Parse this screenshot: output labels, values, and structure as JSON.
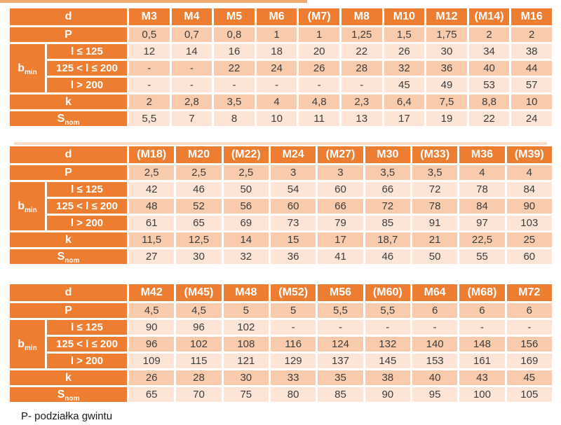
{
  "footnote": "P- podziałka gwintu",
  "colors": {
    "header_bg": "#ED7D31",
    "row_light": "#FCE4D6",
    "row_medium": "#F8CBAD",
    "header_text": "#FFFFFF",
    "cell_text": "#3D3D3D",
    "top_strip": "#F2A96E",
    "divider_strip": "#FBDCC7"
  },
  "row_labels": {
    "d": "d",
    "p": "P",
    "b_base": "b",
    "b_sub": "min",
    "len_1": "l ≤ 125",
    "len_2": "125 < l ≤ 200",
    "len_3": "l > 200",
    "k": "k",
    "s_base": "S",
    "s_sub": "nom"
  },
  "tables": [
    {
      "columns": [
        "M3",
        "M4",
        "M5",
        "M6",
        "(M7)",
        "M8",
        "M10",
        "M12",
        "(M14)",
        "M16"
      ],
      "p": [
        "0,5",
        "0,7",
        "0,8",
        "1",
        "1",
        "1,25",
        "1,5",
        "1,75",
        "2",
        "2"
      ],
      "b1": [
        "12",
        "14",
        "16",
        "18",
        "20",
        "22",
        "26",
        "30",
        "34",
        "38"
      ],
      "b2": [
        "-",
        "-",
        "22",
        "24",
        "26",
        "28",
        "32",
        "36",
        "40",
        "44"
      ],
      "b3": [
        "-",
        "-",
        "-",
        "-",
        "-",
        "-",
        "45",
        "49",
        "53",
        "57"
      ],
      "k": [
        "2",
        "2,8",
        "3,5",
        "4",
        "4,8",
        "2,3",
        "6,4",
        "7,5",
        "8,8",
        "10"
      ],
      "s": [
        "5,5",
        "7",
        "8",
        "10",
        "11",
        "13",
        "17",
        "19",
        "22",
        "24"
      ]
    },
    {
      "columns": [
        "(M18)",
        "M20",
        "(M22)",
        "M24",
        "(M27)",
        "M30",
        "(M33)",
        "M36",
        "(M39)"
      ],
      "p": [
        "2,5",
        "2,5",
        "2,5",
        "3",
        "3",
        "3,5",
        "3,5",
        "4",
        "4"
      ],
      "b1": [
        "42",
        "46",
        "50",
        "54",
        "60",
        "66",
        "72",
        "78",
        "84"
      ],
      "b2": [
        "48",
        "52",
        "56",
        "60",
        "66",
        "72",
        "78",
        "84",
        "90"
      ],
      "b3": [
        "61",
        "65",
        "69",
        "73",
        "79",
        "85",
        "91",
        "97",
        "103"
      ],
      "k": [
        "11,5",
        "12,5",
        "14",
        "15",
        "17",
        "18,7",
        "21",
        "22,5",
        "25"
      ],
      "s": [
        "27",
        "30",
        "32",
        "36",
        "41",
        "46",
        "50",
        "55",
        "60"
      ]
    },
    {
      "columns": [
        "M42",
        "(M45)",
        "M48",
        "(M52)",
        "M56",
        "(M60)",
        "M64",
        "(M68)",
        "M72"
      ],
      "p": [
        "4,5",
        "4,5",
        "5",
        "5",
        "5,5",
        "5,5",
        "6",
        "6",
        "6"
      ],
      "b1": [
        "90",
        "96",
        "102",
        "-",
        "-",
        "-",
        "-",
        "-",
        "-"
      ],
      "b2": [
        "96",
        "102",
        "108",
        "116",
        "124",
        "132",
        "140",
        "148",
        "156"
      ],
      "b3": [
        "109",
        "115",
        "121",
        "129",
        "137",
        "145",
        "153",
        "161",
        "169"
      ],
      "k": [
        "26",
        "28",
        "30",
        "33",
        "35",
        "38",
        "40",
        "43",
        "45"
      ],
      "s": [
        "65",
        "70",
        "75",
        "80",
        "85",
        "90",
        "95",
        "100",
        "105"
      ]
    }
  ]
}
